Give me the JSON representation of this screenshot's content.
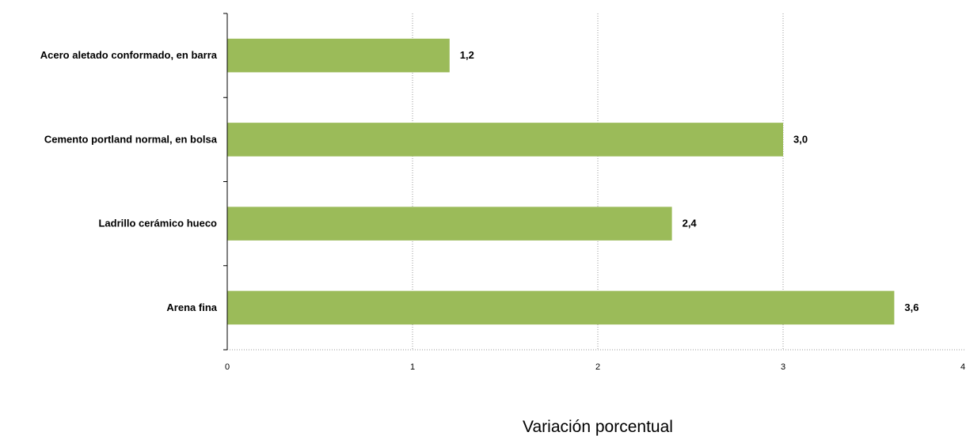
{
  "chart_data": {
    "type": "bar",
    "orientation": "horizontal",
    "categories": [
      "Acero aletado conformado, en barra",
      "Cemento portland normal, en bolsa",
      "Ladrillo cerámico hueco",
      "Arena fina"
    ],
    "values": [
      1.2,
      3.0,
      2.4,
      3.6
    ],
    "value_labels": [
      "1,2",
      "3,0",
      "2,4",
      "3,6"
    ],
    "x_ticks": [
      "0",
      "1",
      "2",
      "3",
      "4"
    ],
    "xlim": [
      0,
      4
    ],
    "xlabel": "Variación porcentual",
    "title": "",
    "ylabel": "",
    "bar_color": "#9bbb59",
    "grid": "vertical dotted",
    "legend": "none"
  }
}
